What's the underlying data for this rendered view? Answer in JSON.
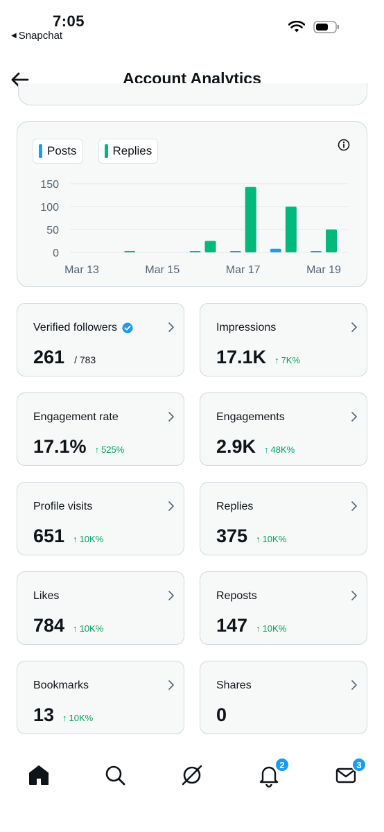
{
  "status_bar": {
    "time": "7:05",
    "back_app": "Snapchat",
    "icons": [
      "wifi-icon",
      "battery-icon"
    ]
  },
  "header": {
    "title": "Account Analytics",
    "back_icon": "arrow-left-icon"
  },
  "chart": {
    "legend": [
      {
        "label": "Posts",
        "color": "#1d9bf0"
      },
      {
        "label": "Replies",
        "color": "#00ba7c"
      }
    ],
    "info_icon": "info-icon"
  },
  "chart_data": {
    "type": "bar",
    "categories": [
      "Mar 13",
      "Mar 14",
      "Mar 15",
      "Mar 16",
      "Mar 17",
      "Mar 18",
      "Mar 19"
    ],
    "x_tick_labels": [
      "Mar 13",
      "Mar 15",
      "Mar 17",
      "Mar 19"
    ],
    "series": [
      {
        "name": "Posts",
        "color": "#1d9bf0",
        "values": [
          0,
          0,
          0,
          3,
          3,
          8,
          3
        ]
      },
      {
        "name": "Replies",
        "color": "#00ba7c",
        "values": [
          0,
          1,
          0,
          25,
          143,
          100,
          50
        ]
      }
    ],
    "y_ticks": [
      "150",
      "100",
      "50",
      "0"
    ],
    "ylim": [
      0,
      150
    ],
    "grid": true
  },
  "stats": [
    {
      "label": "Verified followers",
      "value": "261",
      "total": "/ 783",
      "change": "",
      "verified": true
    },
    {
      "label": "Impressions",
      "value": "17.1K",
      "total": "",
      "change": "7K%"
    },
    {
      "label": "Engagement rate",
      "value": "17.1%",
      "total": "",
      "change": "525%"
    },
    {
      "label": "Engagements",
      "value": "2.9K",
      "total": "",
      "change": "48K%"
    },
    {
      "label": "Profile visits",
      "value": "651",
      "total": "",
      "change": "10K%"
    },
    {
      "label": "Replies",
      "value": "375",
      "total": "",
      "change": "10K%"
    },
    {
      "label": "Likes",
      "value": "784",
      "total": "",
      "change": "10K%"
    },
    {
      "label": "Reposts",
      "value": "147",
      "total": "",
      "change": "10K%"
    },
    {
      "label": "Bookmarks",
      "value": "13",
      "total": "",
      "change": "10K%"
    },
    {
      "label": "Shares",
      "value": "0",
      "total": "",
      "change": ""
    }
  ],
  "colors": {
    "accent": "#1d9bf0",
    "positive": "#00a35c",
    "replies_bar": "#00ba7c"
  },
  "tabbar": {
    "items": [
      {
        "name": "home",
        "icon": "home-icon",
        "badge": ""
      },
      {
        "name": "search",
        "icon": "search-icon",
        "badge": ""
      },
      {
        "name": "grok",
        "icon": "grok-icon",
        "badge": ""
      },
      {
        "name": "notifications",
        "icon": "bell-icon",
        "badge": "2"
      },
      {
        "name": "messages",
        "icon": "mail-icon",
        "badge": "3"
      }
    ]
  }
}
